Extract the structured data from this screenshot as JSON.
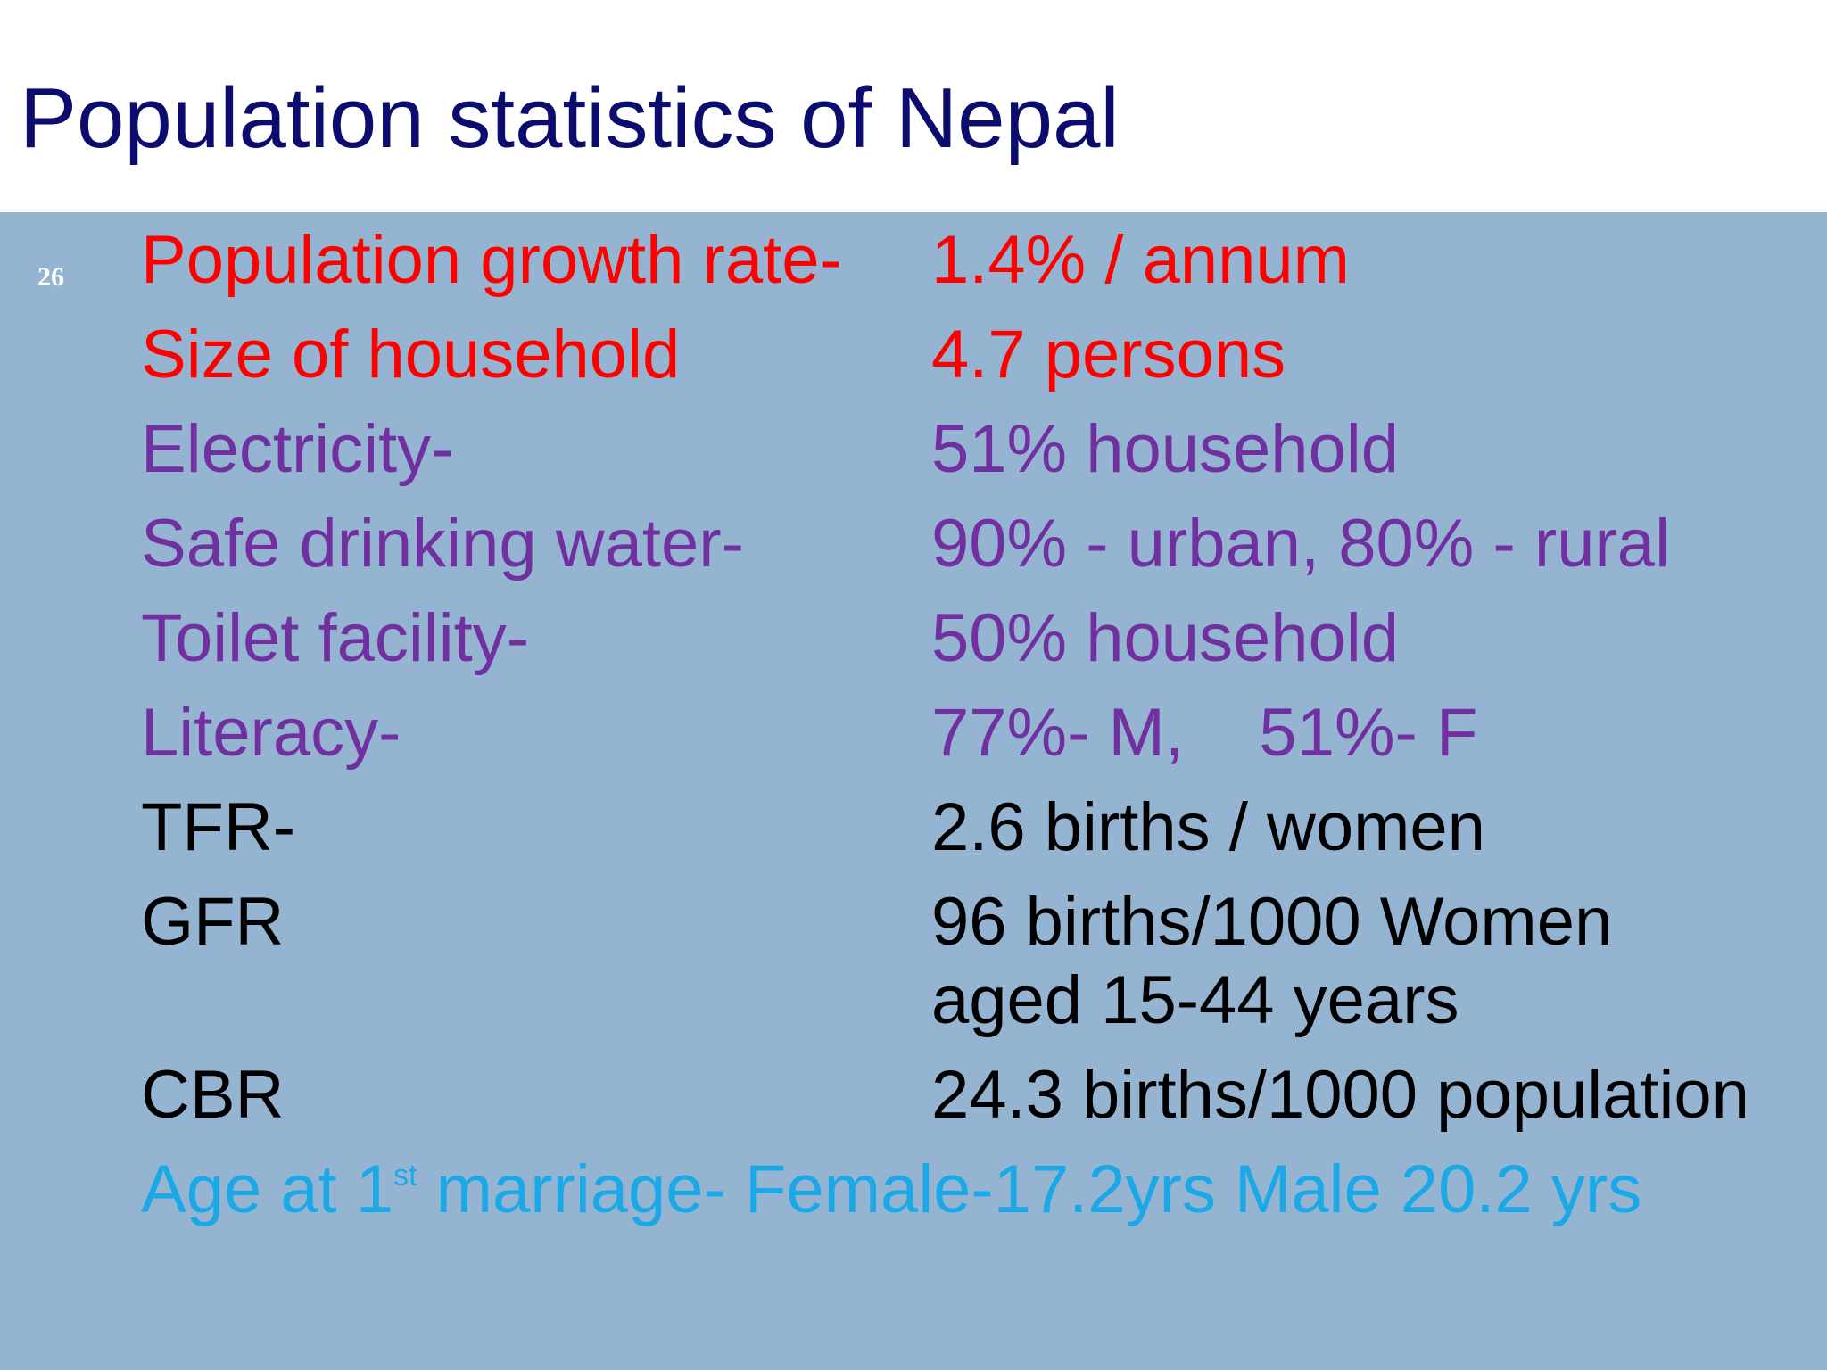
{
  "slide": {
    "title": "Population statistics of Nepal",
    "number": "26"
  },
  "rows": [
    {
      "label": "Population growth rate-",
      "value": "1.4% / annum",
      "color": "#ff0000"
    },
    {
      "label": "Size of household",
      "value": "4.7 persons",
      "color": "#ff0000"
    },
    {
      "label": "Electricity-",
      "value": "51% household",
      "color": "#7030a0"
    },
    {
      "label": "Safe drinking water-",
      "value": "90% - urban, 80% -  rural",
      "color": "#7030a0"
    },
    {
      "label": "Toilet facility-",
      "value": "50% household",
      "color": "#7030a0"
    },
    {
      "label": "Literacy-",
      "value": "77%- M,    51%- F",
      "color": "#7030a0"
    },
    {
      "label": "TFR-",
      "value": "2.6 births / women",
      "color": "#000000"
    },
    {
      "label": "GFR",
      "value": "96 births/1000 Women",
      "value_line2": "aged 15-44 years",
      "color": "#000000"
    },
    {
      "label": "CBR",
      "value": "24.3 births/1000 population",
      "color": "#000000"
    }
  ],
  "marriage": {
    "prefix": "Age at 1",
    "superscript": "st",
    "suffix": " marriage- Female-17.2yrs Male 20.2 yrs",
    "color": "#1aa9e6"
  }
}
